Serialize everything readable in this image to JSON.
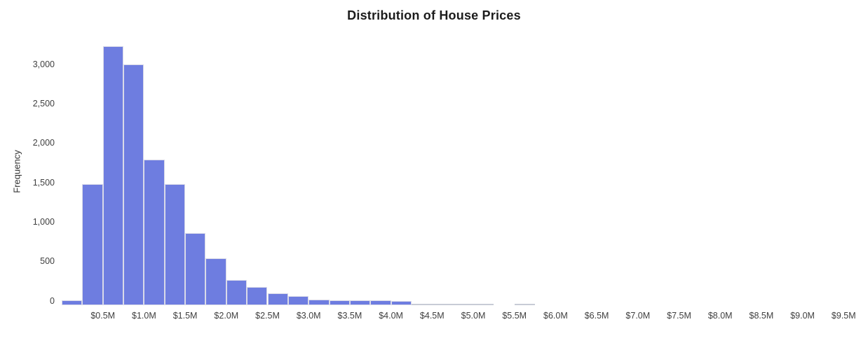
{
  "chart": {
    "title": "Distribution of House Prices",
    "ylabel": "Frequency"
  },
  "chart_data": {
    "type": "bar",
    "subtype": "histogram",
    "title": "Distribution of House Prices",
    "xlabel": "",
    "ylabel": "Frequency",
    "bin_unit": "$M (house price)",
    "bin_width": 0.25,
    "bin_starts": [
      0.0,
      0.25,
      0.5,
      0.75,
      1.0,
      1.25,
      1.5,
      1.75,
      2.0,
      2.25,
      2.5,
      2.75,
      3.0,
      3.25,
      3.5,
      3.75,
      4.0,
      4.25,
      4.5,
      4.75,
      5.0,
      5.25,
      5.5,
      5.75
    ],
    "counts": [
      10,
      1480,
      3230,
      3000,
      1790,
      1480,
      860,
      540,
      270,
      175,
      95,
      60,
      20,
      10,
      7,
      5,
      4,
      0,
      0,
      0,
      0,
      null,
      0,
      null
    ],
    "x_tick_values": [
      0.5,
      1.0,
      1.5,
      2.0,
      2.5,
      3.0,
      3.5,
      4.0,
      4.5,
      5.0,
      5.5,
      6.0,
      6.5,
      7.0,
      7.5,
      8.0,
      8.5,
      9.0,
      9.5
    ],
    "x_tick_labels": [
      "$0.5M",
      "$1.0M",
      "$1.5M",
      "$2.0M",
      "$2.5M",
      "$3.0M",
      "$3.5M",
      "$4.0M",
      "$4.5M",
      "$5.0M",
      "$5.5M",
      "$6.0M",
      "$6.5M",
      "$7.0M",
      "$7.5M",
      "$8.0M",
      "$8.5M",
      "$9.0M",
      "$9.5M"
    ],
    "y_tick_values": [
      0,
      500,
      1000,
      1500,
      2000,
      2500,
      3000
    ],
    "y_tick_labels": [
      "0",
      "500",
      "1,000",
      "1,500",
      "2,000",
      "2,500",
      "3,000"
    ],
    "ylim": [
      -60,
      3380
    ],
    "xlim": [
      0.0,
      9.7
    ],
    "grid": false,
    "legend": null,
    "colors": {
      "bar_fill": "#6E7DE0",
      "bar_border": "#D9DAE8",
      "zero_bar_line": "#C8CBD6",
      "title_text": "#1C1C1C",
      "axis_text": "#3F3F3F"
    }
  }
}
